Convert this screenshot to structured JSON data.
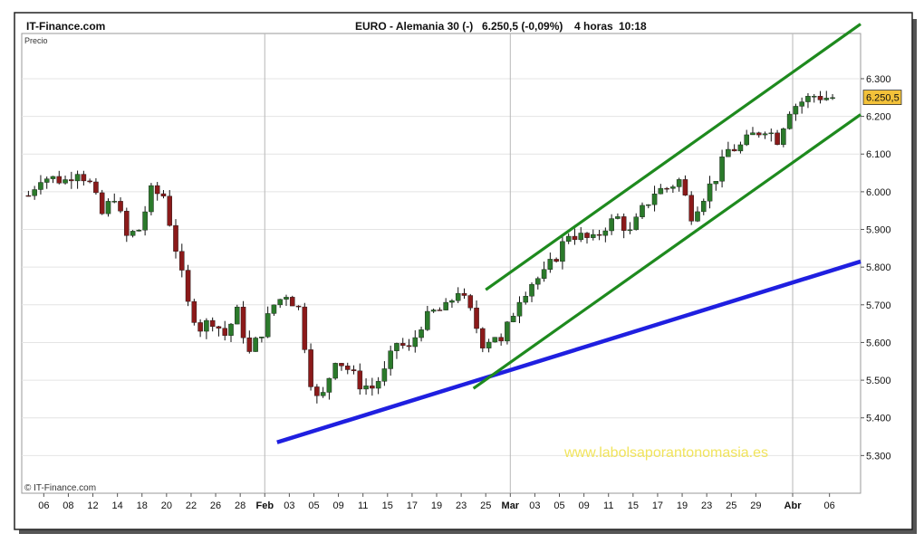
{
  "header": {
    "brand": "IT-Finance.com",
    "instrument": "EURO - Alemania 30 (-)",
    "quote": "6.250,5 (-0,09%)",
    "interval": "4 horas",
    "time": "10:18"
  },
  "watermark": "www.labolsaporantonomasia.es",
  "copyright": "© IT-Finance.com",
  "chart_data": {
    "type": "candlestick",
    "ylabel": "Precio",
    "ylim": [
      5200,
      6420
    ],
    "y_ticks": [
      {
        "value": 5300,
        "label": "5.300"
      },
      {
        "value": 5400,
        "label": "5.400"
      },
      {
        "value": 5500,
        "label": "5.500"
      },
      {
        "value": 5600,
        "label": "5.600"
      },
      {
        "value": 5700,
        "label": "5.700"
      },
      {
        "value": 5800,
        "label": "5.800"
      },
      {
        "value": 5900,
        "label": "5.900"
      },
      {
        "value": 6000,
        "label": "6.000"
      },
      {
        "value": 6100,
        "label": "6.100"
      },
      {
        "value": 6200,
        "label": "6.200"
      },
      {
        "value": 6300,
        "label": "6.300"
      }
    ],
    "x_ticks": [
      "06",
      "08",
      "12",
      "14",
      "18",
      "20",
      "22",
      "26",
      "28",
      "Feb",
      "03",
      "05",
      "09",
      "11",
      "15",
      "17",
      "19",
      "23",
      "25",
      "Mar",
      "03",
      "05",
      "09",
      "11",
      "15",
      "17",
      "19",
      "23",
      "25",
      "29",
      "Abr",
      "06"
    ],
    "month_separators": [
      "Feb",
      "Mar",
      "Abr"
    ],
    "last_price": {
      "value": 6250.5,
      "label": "6.250,5"
    },
    "price_path": [
      {
        "date": "Ene 05",
        "close": 5990
      },
      {
        "date": "Ene 06",
        "close": 6040
      },
      {
        "date": "Ene 08",
        "close": 6030
      },
      {
        "date": "Ene 11",
        "close": 6060
      },
      {
        "date": "Ene 12",
        "close": 6020
      },
      {
        "date": "Ene 13",
        "close": 5940
      },
      {
        "date": "Ene 14",
        "close": 5990
      },
      {
        "date": "Ene 15",
        "close": 5880
      },
      {
        "date": "Ene 18",
        "close": 5900
      },
      {
        "date": "Ene 19",
        "close": 6000
      },
      {
        "date": "Ene 20",
        "close": 5990
      },
      {
        "date": "Ene 21",
        "close": 5850
      },
      {
        "date": "Ene 22",
        "close": 5700
      },
      {
        "date": "Ene 25",
        "close": 5640
      },
      {
        "date": "Ene 26",
        "close": 5660
      },
      {
        "date": "Ene 27",
        "close": 5620
      },
      {
        "date": "Ene 28",
        "close": 5680
      },
      {
        "date": "Ene 29",
        "close": 5570
      },
      {
        "date": "Feb 01",
        "close": 5630
      },
      {
        "date": "Feb 02",
        "close": 5700
      },
      {
        "date": "Feb 03",
        "close": 5730
      },
      {
        "date": "Feb 04",
        "close": 5690
      },
      {
        "date": "Feb 05",
        "close": 5500
      },
      {
        "date": "Feb 06",
        "close": 5440
      },
      {
        "date": "Feb 08",
        "close": 5460
      },
      {
        "date": "Feb 09",
        "close": 5560
      },
      {
        "date": "Feb 10",
        "close": 5530
      },
      {
        "date": "Feb 11",
        "close": 5490
      },
      {
        "date": "Feb 12",
        "close": 5480
      },
      {
        "date": "Feb 15",
        "close": 5520
      },
      {
        "date": "Feb 16",
        "close": 5600
      },
      {
        "date": "Feb 17",
        "close": 5580
      },
      {
        "date": "Feb 18",
        "close": 5650
      },
      {
        "date": "Feb 19",
        "close": 5680
      },
      {
        "date": "Feb 22",
        "close": 5690
      },
      {
        "date": "Feb 23",
        "close": 5740
      },
      {
        "date": "Feb 24",
        "close": 5680
      },
      {
        "date": "Feb 25",
        "close": 5600
      },
      {
        "date": "Feb 26",
        "close": 5620
      },
      {
        "date": "Feb 27",
        "close": 5550
      },
      {
        "date": "Mar 01",
        "close": 5640
      },
      {
        "date": "Mar 02",
        "close": 5720
      },
      {
        "date": "Mar 03",
        "close": 5760
      },
      {
        "date": "Mar 04",
        "close": 5780
      },
      {
        "date": "Mar 05",
        "close": 5830
      },
      {
        "date": "Mar 08",
        "close": 5890
      },
      {
        "date": "Mar 09",
        "close": 5880
      },
      {
        "date": "Mar 10",
        "close": 5870
      },
      {
        "date": "Mar 11",
        "close": 5910
      },
      {
        "date": "Mar 12",
        "close": 5930
      },
      {
        "date": "Mar 15",
        "close": 5890
      },
      {
        "date": "Mar 16",
        "close": 5950
      },
      {
        "date": "Mar 17",
        "close": 6000
      },
      {
        "date": "Mar 18",
        "close": 6010
      },
      {
        "date": "Mar 19",
        "close": 6030
      },
      {
        "date": "Mar 22",
        "close": 5940
      },
      {
        "date": "Mar 23",
        "close": 5990
      },
      {
        "date": "Mar 24",
        "close": 6040
      },
      {
        "date": "Mar 25",
        "close": 6110
      },
      {
        "date": "Mar 26",
        "close": 6120
      },
      {
        "date": "Mar 29",
        "close": 6150
      },
      {
        "date": "Mar 30",
        "close": 6170
      },
      {
        "date": "Mar 31",
        "close": 6140
      },
      {
        "date": "Abr 01",
        "close": 6220
      },
      {
        "date": "Abr 02",
        "close": 6240
      },
      {
        "date": "Abr 05",
        "close": 6255
      },
      {
        "date": "Abr 06",
        "close": 6250
      }
    ],
    "trendlines": [
      {
        "name": "support-blue",
        "color": "#1f1fe0",
        "from": {
          "date": "Feb 02",
          "value": 5335
        },
        "to": {
          "date": "Abr 07",
          "value": 5815
        }
      },
      {
        "name": "channel-upper",
        "color": "#1e8a1e",
        "from": {
          "date": "Feb 25",
          "value": 5740
        },
        "to": {
          "date": "Abr 07",
          "value": 6445
        }
      },
      {
        "name": "channel-lower",
        "color": "#1e8a1e",
        "from": {
          "date": "Feb 24",
          "value": 5478
        },
        "to": {
          "date": "Abr 07",
          "value": 6205
        }
      }
    ],
    "grid": {
      "horizontal": true,
      "vertical": "month-separators"
    },
    "colors": {
      "up": "#2b7a2b",
      "down": "#8b1a1a",
      "wick": "#111111",
      "price_label_bg": "#f3c23a"
    }
  }
}
